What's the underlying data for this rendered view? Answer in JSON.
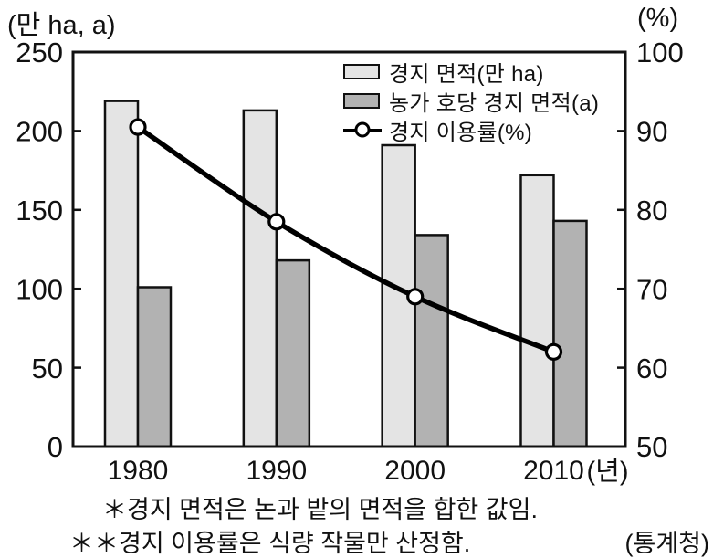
{
  "units": {
    "left": "(만 ha, a)",
    "right": "(%)",
    "x_suffix": "(년)"
  },
  "legend": {
    "items": [
      {
        "label": "경지 면적(만 ha)",
        "swatch": "light-bar"
      },
      {
        "label": "농가 호당 경지 면적(a)",
        "swatch": "dark-bar"
      },
      {
        "label": "경지 이용률(%)",
        "swatch": "line-marker"
      }
    ]
  },
  "footnotes": {
    "line1": "＊경지 면적은 논과 밭의 면적을 합한 값임.",
    "line2": "＊＊경지 이용률은 식량 작물만 산정함.",
    "source": "(통계청)"
  },
  "colors": {
    "bar_light": "#e4e4e4",
    "bar_dark": "#b2b2b2",
    "stroke": "#111111",
    "line": "#000000",
    "marker_fill": "#ffffff"
  },
  "chart_data": {
    "type": "bar",
    "subtype": "grouped bars with overlaid line (dual axis)",
    "categories": [
      "1980",
      "1990",
      "2000",
      "2010"
    ],
    "series": [
      {
        "name": "경지 면적(만 ha)",
        "type": "bar",
        "axis": "left",
        "values": [
          219,
          213,
          191,
          172
        ]
      },
      {
        "name": "농가 호당 경지 면적(a)",
        "type": "bar",
        "axis": "left",
        "values": [
          101,
          118,
          134,
          143
        ]
      },
      {
        "name": "경지 이용률(%)",
        "type": "line",
        "axis": "right",
        "values": [
          90.5,
          78.5,
          69,
          62
        ]
      }
    ],
    "left_axis": {
      "title": "(만 ha, a)",
      "min": 0,
      "max": 250,
      "ticks": [
        0,
        50,
        100,
        150,
        200,
        250
      ]
    },
    "right_axis": {
      "title": "(%)",
      "min": 50,
      "max": 100,
      "ticks": [
        50,
        60,
        70,
        80,
        90,
        100
      ]
    },
    "x_axis": {
      "title": "(년)",
      "labels": [
        "1980",
        "1990",
        "2000",
        "2010"
      ]
    },
    "grid": false,
    "legend_position": "top-right-inside"
  }
}
